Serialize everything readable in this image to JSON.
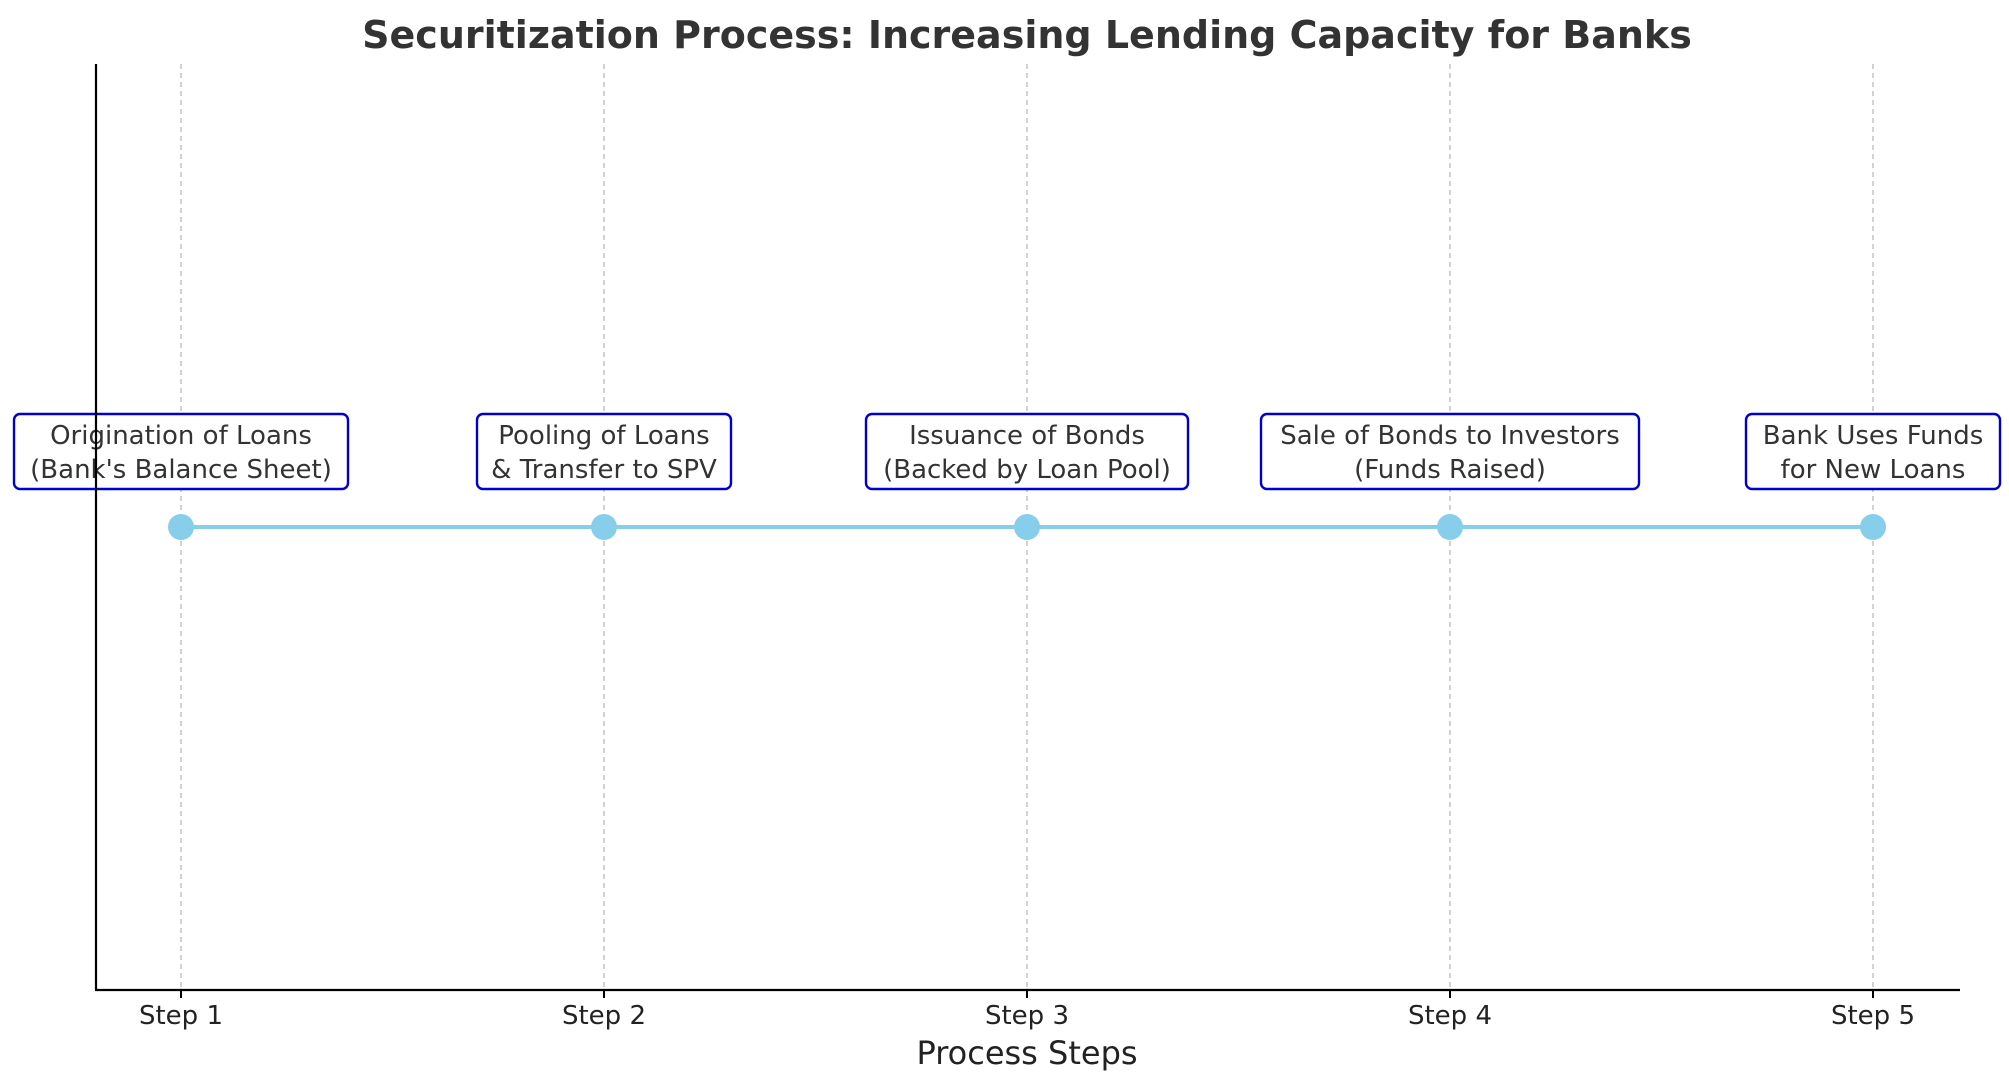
{
  "chart_data": {
    "type": "line",
    "title": "Securitization Process: Increasing Lending Capacity for Banks",
    "xlabel": "Process Steps",
    "ylabel": "",
    "categories": [
      "Step 1",
      "Step 2",
      "Step 3",
      "Step 4",
      "Step 5"
    ],
    "values": [
      1,
      1,
      1,
      1,
      1
    ],
    "ylim": [
      0,
      2
    ],
    "annotations": [
      [
        "Origination of Loans",
        "(Bank's Balance Sheet)"
      ],
      [
        "Pooling of Loans",
        "& Transfer to SPV"
      ],
      [
        "Issuance of Bonds",
        "(Backed by Loan Pool)"
      ],
      [
        "Sale of Bonds to Investors",
        "(Funds Raised)"
      ],
      [
        "Bank Uses Funds",
        "for New Loans"
      ]
    ],
    "grid": "x-dashed",
    "colors": {
      "line": "#87CEEB",
      "marker": "#87CEEB",
      "box_border": "#0000CD",
      "box_fill": "#ffffff",
      "grid": "#bbbbbb",
      "axis": "#000000"
    }
  }
}
